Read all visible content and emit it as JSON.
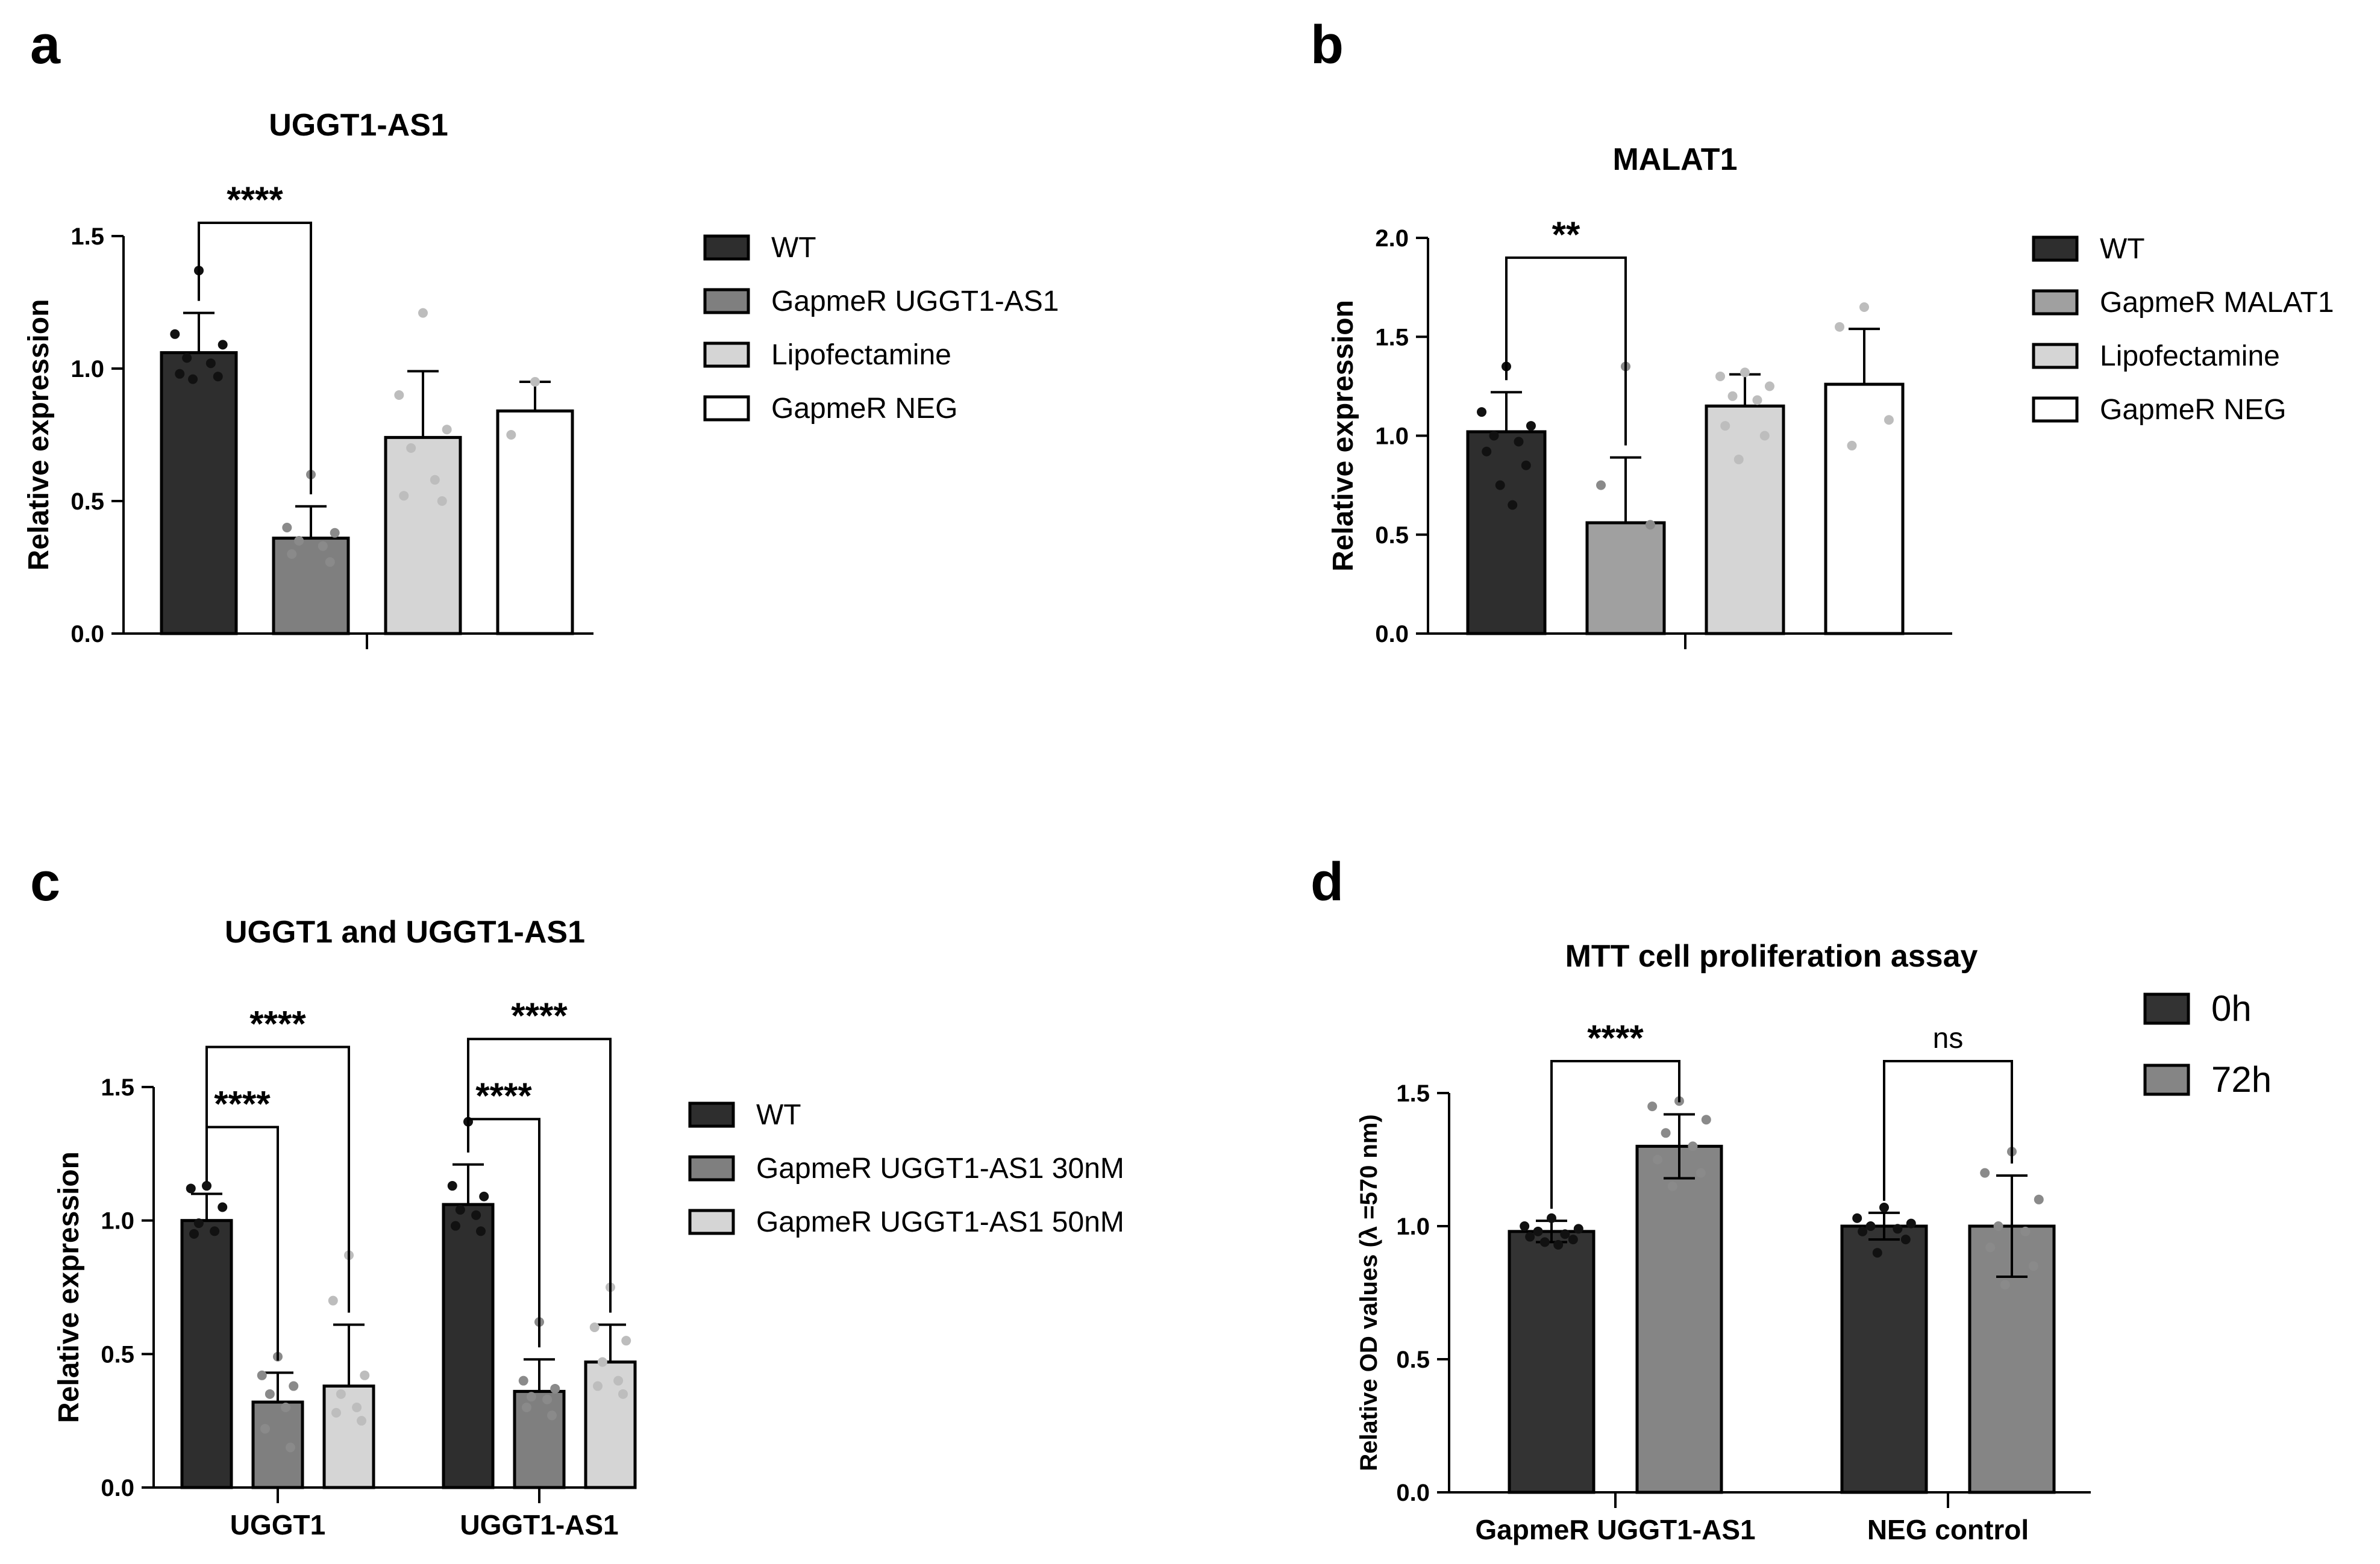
{
  "colors": {
    "WT": "#2e2e2e",
    "GapmeR_dark": "#7f7f7f",
    "GapmeR_medium": "#a0a0a0",
    "Lipofectamine": "#d5d5d5",
    "NEG": "#ffffff",
    "h0": "#333333",
    "h72": "#858585"
  },
  "chart_data": [
    {
      "panel": "a",
      "type": "bar",
      "title": "UGGT1-AS1",
      "ylabel": "Relative expression",
      "xlabel": "",
      "ylim": [
        0,
        1.5
      ],
      "yticks": [
        "0.0",
        "0.5",
        "1.0",
        "1.5"
      ],
      "categories": [
        ""
      ],
      "series": [
        {
          "name": "WT",
          "color": "#2e2e2e",
          "values": [
            1.06
          ],
          "error": [
            0.15
          ],
          "points": [
            [
              1.37,
              1.13,
              1.09,
              1.04,
              1.02,
              0.98,
              0.97,
              0.96
            ]
          ]
        },
        {
          "name": "GapmeR UGGT1-AS1",
          "color": "#7f7f7f",
          "values": [
            0.36
          ],
          "error": [
            0.12
          ],
          "points": [
            [
              0.6,
              0.4,
              0.38,
              0.35,
              0.33,
              0.3,
              0.27
            ]
          ]
        },
        {
          "name": "Lipofectamine",
          "color": "#d5d5d5",
          "values": [
            0.74
          ],
          "error": [
            0.25
          ],
          "points": [
            [
              1.21,
              0.9,
              0.77,
              0.7,
              0.58,
              0.52,
              0.5
            ]
          ]
        },
        {
          "name": "GapmeR NEG",
          "color": "#ffffff",
          "values": [
            0.84
          ],
          "error": [
            0.11
          ],
          "points": [
            [
              0.95,
              0.75
            ]
          ]
        }
      ],
      "comparisons": [
        {
          "from": 0,
          "to": 1,
          "label": "****",
          "y": 1.55
        }
      ],
      "legend": "right"
    },
    {
      "panel": "b",
      "type": "bar",
      "title": "MALAT1",
      "ylabel": "Relative expression",
      "xlabel": "",
      "ylim": [
        0,
        2.0
      ],
      "yticks": [
        "0.0",
        "0.5",
        "1.0",
        "1.5",
        "2.0"
      ],
      "categories": [
        ""
      ],
      "series": [
        {
          "name": "WT",
          "color": "#2e2e2e",
          "values": [
            1.02
          ],
          "error": [
            0.2
          ],
          "points": [
            [
              1.35,
              1.12,
              1.05,
              1.0,
              0.97,
              0.92,
              0.85,
              0.75,
              0.65
            ]
          ]
        },
        {
          "name": "GapmeR MALAT1",
          "color": "#a0a0a0",
          "values": [
            0.56
          ],
          "error": [
            0.33
          ],
          "points": [
            [
              1.35,
              0.75,
              0.55
            ]
          ]
        },
        {
          "name": "Lipofectamine",
          "color": "#d5d5d5",
          "values": [
            1.15
          ],
          "error": [
            0.16
          ],
          "points": [
            [
              1.32,
              1.3,
              1.25,
              1.2,
              1.18,
              1.05,
              1.0,
              0.88
            ]
          ]
        },
        {
          "name": "GapmeR NEG",
          "color": "#ffffff",
          "values": [
            1.26
          ],
          "error": [
            0.28
          ],
          "points": [
            [
              1.65,
              1.55,
              1.08,
              0.95
            ]
          ]
        }
      ],
      "comparisons": [
        {
          "from": 0,
          "to": 1,
          "label": "**",
          "y": 1.9
        }
      ],
      "legend": "right"
    },
    {
      "panel": "c",
      "type": "bar",
      "title": "UGGT1 and UGGT1-AS1",
      "ylabel": "Relative expression",
      "xlabel": "",
      "ylim": [
        0,
        1.5
      ],
      "yticks": [
        "0.0",
        "0.5",
        "1.0",
        "1.5"
      ],
      "categories": [
        "UGGT1",
        "UGGT1-AS1"
      ],
      "series": [
        {
          "name": "WT",
          "color": "#2e2e2e",
          "values": [
            1.0,
            1.06
          ],
          "error": [
            0.1,
            0.15
          ],
          "points": [
            [
              1.13,
              1.12,
              1.05,
              0.99,
              0.96,
              0.95
            ],
            [
              1.37,
              1.13,
              1.09,
              1.04,
              1.02,
              0.98,
              0.96
            ]
          ]
        },
        {
          "name": "GapmeR UGGT1-AS1 30nM",
          "color": "#7f7f7f",
          "values": [
            0.32,
            0.36
          ],
          "error": [
            0.11,
            0.12
          ],
          "points": [
            [
              0.49,
              0.42,
              0.38,
              0.35,
              0.3,
              0.22,
              0.15
            ],
            [
              0.62,
              0.4,
              0.37,
              0.34,
              0.33,
              0.3,
              0.27
            ]
          ]
        },
        {
          "name": "GapmeR UGGT1-AS1 50nM",
          "color": "#d5d5d5",
          "values": [
            0.38,
            0.47
          ],
          "error": [
            0.23,
            0.14
          ],
          "points": [
            [
              0.87,
              0.7,
              0.42,
              0.35,
              0.3,
              0.28,
              0.25
            ],
            [
              0.75,
              0.6,
              0.55,
              0.47,
              0.4,
              0.38,
              0.35
            ]
          ]
        }
      ],
      "comparisons": [
        {
          "group": 0,
          "from": 0,
          "to": 1,
          "label": "****",
          "y": 1.35
        },
        {
          "group": 0,
          "from": 0,
          "to": 2,
          "label": "****",
          "y": 1.65
        },
        {
          "group": 1,
          "from": 0,
          "to": 1,
          "label": "****",
          "y": 1.38
        },
        {
          "group": 1,
          "from": 0,
          "to": 2,
          "label": "****",
          "y": 1.68
        }
      ],
      "legend": "right"
    },
    {
      "panel": "d",
      "type": "bar",
      "title": "MTT cell proliferation assay",
      "ylabel": "Relative OD values (λ =570 nm)",
      "xlabel": "",
      "ylim": [
        0,
        1.5
      ],
      "yticks": [
        "0.0",
        "0.5",
        "1.0",
        "1.5"
      ],
      "categories": [
        "GapmeR UGGT1-AS1",
        "NEG control"
      ],
      "series": [
        {
          "name": "0h",
          "color": "#333333",
          "values": [
            0.98,
            1.0
          ],
          "error": [
            0.04,
            0.05
          ],
          "points": [
            [
              1.03,
              1.0,
              0.99,
              0.98,
              0.97,
              0.96,
              0.95,
              0.94,
              0.93
            ],
            [
              1.07,
              1.03,
              1.01,
              1.0,
              0.99,
              0.98,
              0.95,
              0.9
            ]
          ]
        },
        {
          "name": "72h",
          "color": "#858585",
          "values": [
            1.3,
            1.0
          ],
          "error": [
            0.12,
            0.19
          ],
          "points": [
            [
              1.47,
              1.45,
              1.4,
              1.35,
              1.3,
              1.25,
              1.2,
              1.15
            ],
            [
              1.28,
              1.2,
              1.1,
              1.0,
              0.98,
              0.92,
              0.85,
              0.78
            ]
          ]
        }
      ],
      "comparisons": [
        {
          "group": 0,
          "from": 0,
          "to": 1,
          "label": "****",
          "y": 1.62
        },
        {
          "group": 1,
          "from": 0,
          "to": 1,
          "label": "ns",
          "y": 1.62
        }
      ],
      "legend": "top-right"
    }
  ]
}
